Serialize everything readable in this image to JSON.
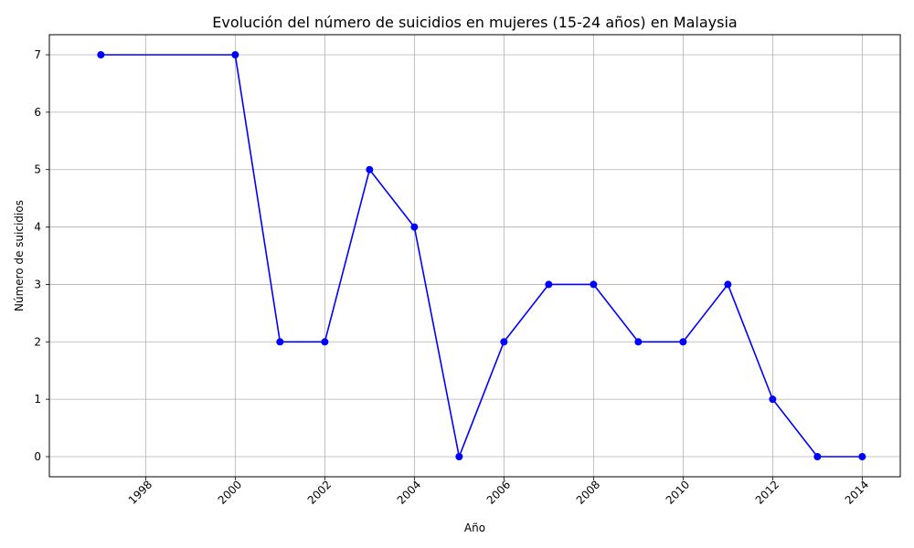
{
  "chart_data": {
    "type": "line",
    "title": "Evolución del número de suicidios en mujeres (15-24 años) en Malaysia",
    "xlabel": "Año",
    "ylabel": "Número de suicidios",
    "x": [
      1997,
      2000,
      2001,
      2002,
      2003,
      2004,
      2005,
      2006,
      2007,
      2008,
      2009,
      2010,
      2011,
      2012,
      2013,
      2014
    ],
    "series": [
      {
        "values": [
          7,
          7,
          2,
          2,
          5,
          4,
          0,
          2,
          3,
          3,
          2,
          2,
          3,
          1,
          0,
          0
        ],
        "color": "#0000ff",
        "marker": "circle"
      }
    ],
    "xticks": [
      "1998",
      "2000",
      "2002",
      "2004",
      "2006",
      "2008",
      "2010",
      "2012",
      "2014"
    ],
    "yticks": [
      "0",
      "1",
      "2",
      "3",
      "4",
      "5",
      "6",
      "7"
    ],
    "xlim": [
      1995.85,
      2014.85
    ],
    "ylim": [
      -0.35,
      7.35
    ],
    "grid": true,
    "xtick_rotation": "45 degrees"
  }
}
